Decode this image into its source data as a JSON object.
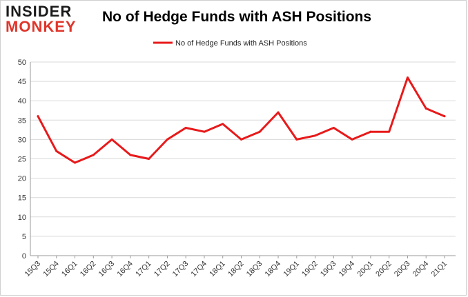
{
  "logo": {
    "line1": "INSIDER",
    "line2": "MONKEY"
  },
  "chart_data": {
    "type": "line",
    "title": "No of Hedge Funds with ASH Positions",
    "categories": [
      "15Q3",
      "15Q4",
      "16Q1",
      "16Q2",
      "16Q3",
      "16Q4",
      "17Q1",
      "17Q2",
      "17Q3",
      "17Q4",
      "18Q1",
      "18Q2",
      "18Q3",
      "18Q4",
      "19Q1",
      "19Q2",
      "19Q3",
      "19Q4",
      "20Q1",
      "20Q2",
      "20Q3",
      "20Q4",
      "21Q1"
    ],
    "series": [
      {
        "name": "No of Hedge Funds with ASH Positions",
        "color": "#e8191a",
        "values": [
          36,
          27,
          24,
          26,
          30,
          26,
          25,
          30,
          33,
          32,
          34,
          30,
          32,
          37,
          30,
          31,
          33,
          30,
          32,
          32,
          46,
          38,
          36
        ]
      }
    ],
    "ylim": [
      0,
      50
    ],
    "yticks": [
      0,
      5,
      10,
      15,
      20,
      25,
      30,
      35,
      40,
      45,
      50
    ],
    "grid": true,
    "legend_position": "top-center"
  }
}
